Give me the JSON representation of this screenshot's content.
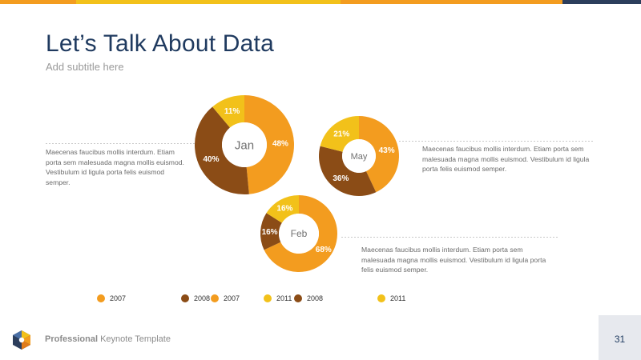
{
  "slide": {
    "title": "Let’s Talk About Data",
    "subtitle": "Add subtitle here",
    "paragraphs": [
      "Maecenas faucibus mollis interdum. Etiam porta sem malesuada magna mollis euismod. Vestibulum id ligula porta felis euismod semper.",
      "Maecenas faucibus mollis interdum. Etiam porta sem malesuada magna mollis euismod. Vestibulum id ligula porta felis euismod semper.",
      "Maecenas faucibus mollis interdum. Etiam porta sem malesuada magna mollis euismod. Vestibulum id ligula porta felis euismod semper."
    ],
    "footer_bold": "Professional",
    "footer_rest": " Keynote Template",
    "page_number": "31"
  },
  "colors": {
    "orange": "#f39c1f",
    "brown": "#8b4c16",
    "yellow": "#f2c11a",
    "title": "#1f3a5f",
    "topbar": [
      "#f39c1f",
      "#f2c11a",
      "#f39c1f",
      "#2c3e5c"
    ]
  },
  "legend": {
    "items": [
      {
        "label": "2007",
        "color": "#f39c1f"
      },
      {
        "label": "2008",
        "color": "#8b4c16"
      },
      {
        "label": "2007",
        "color": "#f39c1f"
      },
      {
        "label": "2011",
        "color": "#f2c11a"
      },
      {
        "label": "2008",
        "color": "#8b4c16"
      },
      {
        "label": "2011",
        "color": "#f2c11a"
      }
    ]
  },
  "chart_data": [
    {
      "type": "pie",
      "title": "Jan",
      "slices": [
        {
          "label": "48%",
          "value": 48,
          "color": "#f39c1f"
        },
        {
          "label": "40%",
          "value": 40,
          "color": "#8b4c16"
        },
        {
          "label": "11%",
          "value": 11,
          "color": "#f2c11a"
        }
      ]
    },
    {
      "type": "pie",
      "title": "May",
      "slices": [
        {
          "label": "43%",
          "value": 43,
          "color": "#f39c1f"
        },
        {
          "label": "36%",
          "value": 36,
          "color": "#8b4c16"
        },
        {
          "label": "21%",
          "value": 21,
          "color": "#f2c11a"
        }
      ]
    },
    {
      "type": "pie",
      "title": "Feb",
      "slices": [
        {
          "label": "68%",
          "value": 68,
          "color": "#f39c1f"
        },
        {
          "label": "16%",
          "value": 16,
          "color": "#8b4c16"
        },
        {
          "label": "16%",
          "value": 16,
          "color": "#f2c11a"
        }
      ]
    }
  ]
}
